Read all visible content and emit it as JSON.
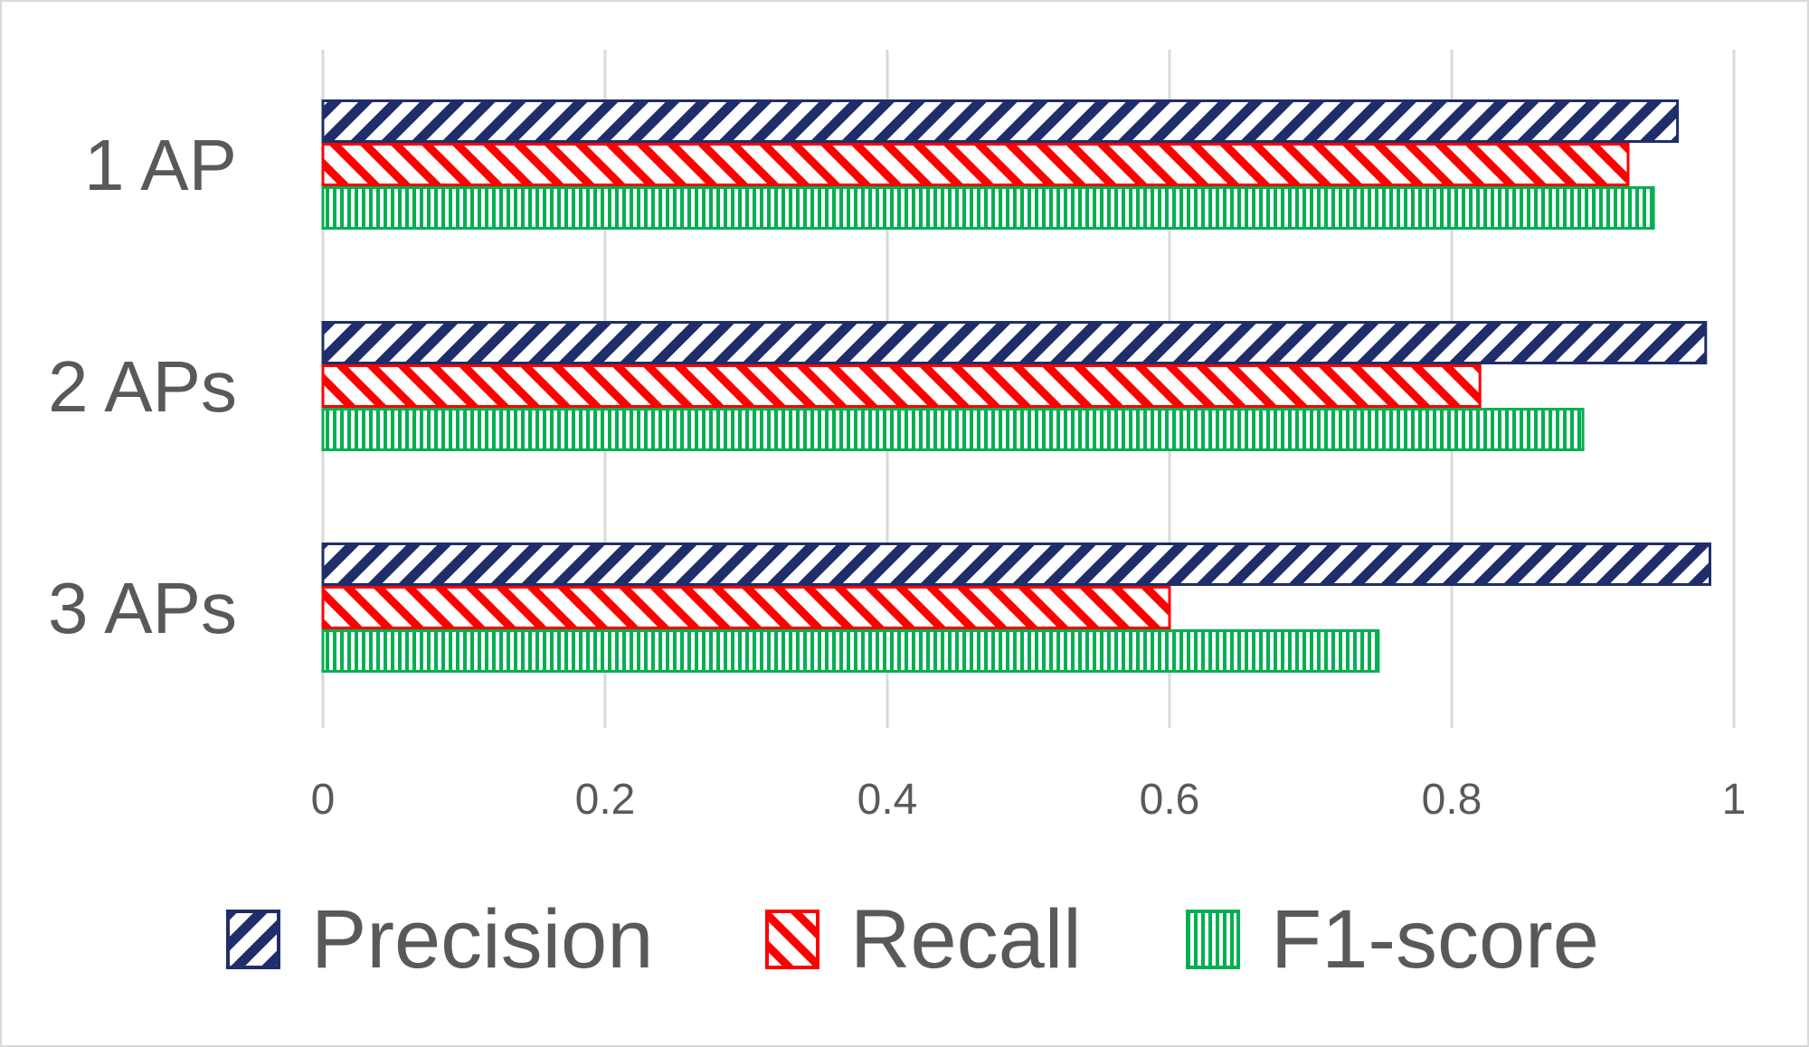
{
  "chart_data": {
    "type": "bar",
    "orientation": "horizontal",
    "categories": [
      "1 AP",
      "2 APs",
      "3 APs"
    ],
    "series": [
      {
        "name": "Precision",
        "values": [
          0.96,
          0.98,
          0.983
        ],
        "color": "#1f2d6b",
        "pattern": "diagonal-up"
      },
      {
        "name": "Recall",
        "values": [
          0.925,
          0.82,
          0.6
        ],
        "color": "#ff0000",
        "pattern": "diagonal-down"
      },
      {
        "name": "F1-score",
        "values": [
          0.943,
          0.893,
          0.748
        ],
        "color": "#00b050",
        "pattern": "vertical"
      }
    ],
    "xlim": [
      0,
      1
    ],
    "xticks": [
      "0",
      "0.2",
      "0.4",
      "0.6",
      "0.8",
      "1"
    ],
    "grid": true,
    "legend_position": "bottom"
  }
}
